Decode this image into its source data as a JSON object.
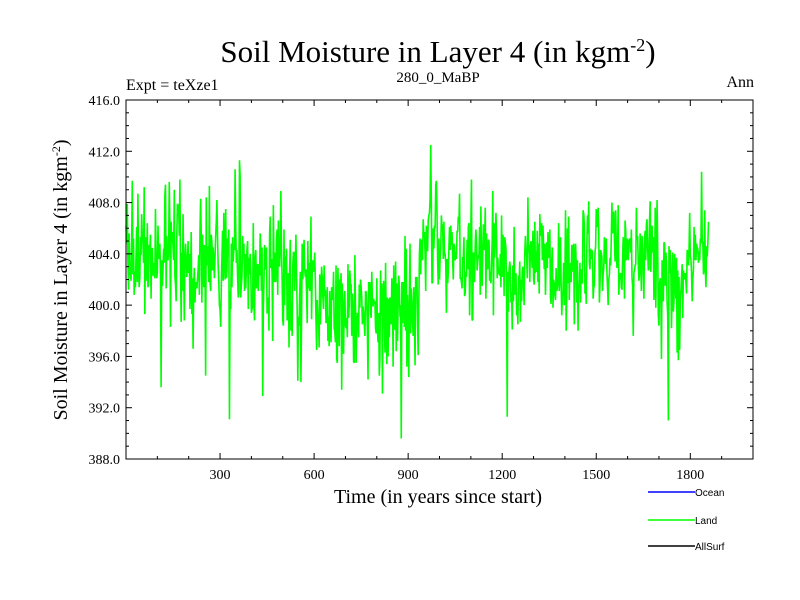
{
  "chart_data": {
    "type": "line",
    "title": "Soil Moisture in Layer 4 (in kgm",
    "title_superscript": "-2",
    "title_close": ")",
    "subtitle_left": "Expt = teXze1",
    "subtitle_center": "280_0_MaBP",
    "subtitle_right": "Ann",
    "xlabel": "Time (in years since start)",
    "ylabel": "Soil Moisture in Layer 4 (in kgm",
    "ylabel_superscript": "-2",
    "ylabel_close": ")",
    "xlim": [
      0,
      2000
    ],
    "ylim": [
      388.0,
      416.0
    ],
    "x_ticks": [
      300,
      600,
      900,
      1200,
      1500,
      1800
    ],
    "x_tick_labels": [
      "300",
      "600",
      "900",
      "1200",
      "1500",
      "1800"
    ],
    "y_ticks": [
      388.0,
      392.0,
      396.0,
      400.0,
      404.0,
      408.0,
      412.0,
      416.0
    ],
    "y_tick_labels": [
      "388.0",
      "392.0",
      "396.0",
      "400.0",
      "404.0",
      "408.0",
      "412.0",
      "416.0"
    ],
    "legend_position": "bottom-right, outside plot",
    "series": [
      {
        "name": "Ocean",
        "color": "#0000ff",
        "values": []
      },
      {
        "name": "Land",
        "color": "#00ff00",
        "x_start": 0,
        "x_step": 2,
        "values": [
          406.2,
          404.8,
          407.9,
          403.5,
          401.2,
          405.6,
          403.1,
          402.4,
          401.9,
          404.7,
          409.7,
          402.4,
          405.2,
          400.8,
          402.6,
          401.4,
          403.8,
          406.1,
          401.8,
          408.7,
          403.1,
          401.4,
          402.1,
          405.3,
          403.9,
          407.1,
          405.2,
          404.9,
          403.3,
          409.2,
          399.3,
          405.3,
          401.9,
          403.1,
          406.4,
          401.4,
          401.7,
          404.7,
          404.2,
          405.5,
          400.5,
          404.4,
          404.4,
          402.3,
          403.3,
          402.5,
          402.1,
          407.5,
          403.6,
          402.1,
          402.5,
          406.2,
          403.9,
          403.6,
          404.8,
          402.3,
          393.6,
          403.5,
          401.5,
          402.7,
          404.4,
          403.3,
          408.6,
          409.4,
          401.3,
          405.4,
          404.1,
          403.5,
          404.3,
          409.6,
          406.2,
          398.3,
          406.5,
          404.9,
          405.7,
          404.5,
          403.5,
          409.0,
          402.2,
          401.6,
          400.3,
          405.3,
          407.9,
          407.8,
          407.5,
          405.4,
          409.8,
          402.3,
          398.7,
          404.1,
          401.1,
          407.1,
          403.1,
          398.8,
          403.7,
          404.8,
          403.4,
          402.2,
          403.4,
          405.0,
          402.5,
          404.0,
          399.7,
          401.8,
          405.7,
          399.3,
          402.1,
          396.6,
          401.6,
          402.9,
          400.2,
          401.8,
          401.5,
          401.3,
          402.0,
          402.8,
          403.9,
          400.8,
          405.8,
          408.3,
          405.5,
          400.2,
          405.5,
          403.7,
          401.4,
          404.7,
          403.6,
          394.5,
          408.4,
          403.1,
          404.6,
          403.4,
          401.8,
          409.3,
          401.8,
          401.1,
          405.5,
          404.9,
          402.7,
          404.5,
          403.5,
          402.1,
          403.7,
          405.4,
          406.5,
          408.2,
          405.3,
          403.1,
          401.8,
          400.0,
          399.7,
          398.3,
          401.4,
          403.6,
          405.8,
          401.9,
          407.2,
          403.9,
          402.0,
          407.5,
          402.1,
          402.7,
          405.2,
          404.9,
          405.9,
          391.1,
          401.1,
          399.7,
          404.8,
          401.4,
          405.3,
          403.4,
          404.4,
          404.3,
          410.6,
          406.0,
          403.3,
          404.3,
          402.2,
          400.6,
          400.9,
          411.3,
          410.1,
          400.6,
          401.6,
          402.3,
          405.4,
          403.8,
          404.8,
          401.1,
          404.0,
          401.3,
          402.9,
          404.4,
          405.0,
          399.7,
          403.7,
          402.4,
          404.0,
          402.8,
          399.4,
          399.7,
          400.0,
          406.4,
          400.0,
          398.8,
          403.8,
          404.3,
          401.3,
          402.6,
          403.2,
          401.1,
          403.2,
          402.3,
          405.6,
          404.1,
          401.1,
          404.5,
          392.9,
          399.6,
          401.8,
          404.7,
          403.3,
          402.8,
          404.5,
          399.4,
          399.4,
          400.6,
          398.0,
          405.5,
          406.9,
          402.9,
          403.6,
          402.5,
          397.2,
          407.8,
          403.2,
          401.8,
          404.1,
          401.8,
          405.1,
          405.9,
          400.8,
          406.6,
          403.8,
          403.0,
          404.6,
          408.9,
          404.2,
          402.1,
          398.8,
          398.4,
          405.9,
          400.0,
          403.8,
          402.4,
          404.4,
          398.8,
          400.7,
          402.5,
          396.7,
          402.8,
          405.1,
          398.0,
          400.2,
          397.6,
          403.1,
          404.1,
          404.1,
          401.1,
          402.8,
          405.5,
          402.6,
          399.6,
          394.1,
          399.1,
          398.4,
          400.7,
          402.6,
          394.0,
          399.0,
          404.8,
          402.0,
          403.6,
          405.1,
          402.8,
          402.2,
          402.8,
          400.9,
          398.6,
          405.0,
          401.3,
          403.3,
          401.1,
          401.7,
          406.9,
          398.9,
          402.7,
          403.5,
          402.6,
          403.1,
          404.1,
          401.9,
          398.9,
          396.5,
          400.4,
          399.1,
          399.1,
          396.7,
          402.4,
          398.5,
          400.6,
          403.0,
          402.1,
          400.6,
          399.7,
          403.1,
          400.7,
          401.2,
          398.6,
          398.8,
          401.4,
          397.2,
          399.1,
          396.8,
          401.1,
          398.7,
          397.1,
          401.4,
          401.1,
          400.4,
          402.6,
          398.2,
          398.0,
          397.1,
          403.1,
          395.8,
          395.5,
          402.9,
          400.1,
          396.8,
          402.0,
          400.9,
          402.5,
          393.4,
          401.7,
          398.2,
          396.2,
          400.3,
          401.1,
          398.4,
          398.2,
          399.0,
          397.5,
          403.2,
          399.0,
          399.9,
          402.7,
          401.6,
          401.6,
          397.6,
          400.9,
          400.1,
          395.6,
          395.5,
          403.9,
          400.0,
          395.5,
          398.2,
          399.4,
          398.7,
          397.5,
          401.6,
          399.8,
          402.0,
          401.4,
          400.6,
          398.5,
          399.9,
          399.3,
          398.5,
          397.6,
          401.1,
          401.0,
          400.1,
          398.1,
          394.2,
          401.8,
          401.4,
          401.8,
          399.5,
          399.0,
          402.6,
          400.2,
          399.9,
          400.5,
          400.1,
          400.3,
          398.2,
          397.8,
          402.1,
          398.1,
          397.1,
          399.4,
          394.5,
          395.9,
          402.7,
          399.2,
          401.7,
          393.1,
          400.0,
          401.9,
          399.5,
          396.3,
          403.3,
          398.3,
          395.4,
          400.6,
          396.0,
          400.5,
          397.5,
          400.6,
          399.6,
          398.5,
          402.1,
          401.3,
          395.2,
          403.1,
          398.1,
          398.2,
          403.4,
          396.4,
          401.7,
          397.2,
          399.9,
          402.3,
          401.4,
          399.1,
          400.0,
          389.6,
          401.8,
          398.6,
          401.8,
          401.4,
          398.3,
          405.4,
          398.0,
          404.4,
          395.2,
          400.8,
          398.1,
          394.4,
          401.1,
          404.8,
          397.8,
          401.3,
          400.3,
          398.6,
          397.6,
          401.4,
          399.4,
          395.3,
          402.2,
          401.1,
          402.2,
          398.7,
          396.1,
          400.0,
          404.0,
          405.2,
          402.4,
          405.1,
          404.0,
          403.5,
          406.7,
          405.3,
          405.7,
          404.0,
          401.1,
          406.2,
          404.5,
          404.2,
          406.6,
          407.0,
          407.2,
          408.3,
          412.5,
          407.9,
          401.7,
          401.8,
          406.0,
          404.4,
          406.2,
          406.0,
          409.4,
          409.7,
          407.5,
          403.6,
          401.6,
          405.2,
          402.0,
          403.7,
          404.4,
          407.0,
          406.1,
          406.3,
          403.6,
          406.5,
          403.8,
          403.9,
          403.3,
          399.4,
          403.6,
          401.7,
          402.5,
          404.5,
          406.1,
          404.3,
          406.2,
          404.7,
          405.7,
          403.4,
          402.0,
          404.8,
          404.5,
          403.5,
          404.1,
          403.6,
          405.8,
          405.7,
          406.9,
          406.4,
          408.7,
          402.1,
          402.1,
          401.8,
          401.3,
          403.7,
          403.7,
          405.3,
          400.7,
          400.9,
          402.6,
          402.2,
          405.1,
          402.8,
          406.1,
          406.4,
          399.2,
          402.5,
          406.0,
          409.8,
          398.8,
          398.9,
          404.1,
          404.0,
          401.8,
          404.8,
          405.9,
          405.0,
          402.7,
          403.4,
          403.8,
          403.9,
          406.1,
          400.8,
          407.7,
          403.3,
          401.5,
          404.1,
          406.3,
          404.3,
          405.2,
          407.6,
          400.5,
          405.6,
          402.9,
          402.8,
          405.1,
          405.0,
          401.9,
          402.6,
          401.7,
          403.2,
          404.9,
          408.9,
          399.2,
          406.4,
          403.7,
          404.9,
          407.2,
          405.6,
          402.1,
          403.7,
          402.5,
          402.5,
          402.3,
          404.0,
          401.4,
          407.0,
          402.2,
          405.5,
          405.1,
          400.7,
          405.3,
          404.9,
          404.4,
          400.4,
          391.3,
          402.6,
          399.5,
          402.8,
          403.4,
          402.9,
          400.2,
          401.0,
          398.1,
          403.1,
          400.3,
          406.1,
          400.8,
          402.0,
          402.5,
          399.2,
          400.2,
          398.5,
          402.3,
          401.6,
          403.4,
          398.7,
          402.0,
          400.3,
          402.6,
          403.0,
          401.7,
          400.0,
          404.0,
          405.4,
          404.1,
          403.8,
          402.1,
          408.4,
          404.1,
          404.7,
          401.8,
          404.6,
          405.0,
          403.6,
          402.9,
          405.8,
          402.1,
          401.6,
          406.5,
          402.5,
          404.2,
          402.6,
          405.8,
          401.8,
          404.8,
          400.9,
          407.1,
          405.6,
          405.4,
          406.4,
          403.5,
          406.2,
          404.6,
          402.8,
          404.8,
          400.8,
          403.3,
          404.9,
          402.9,
          405.7,
          403.7,
          403.8,
          405.9,
          400.6,
          400.1,
          403.5,
          404.5,
          399.8,
          402.0,
          401.7,
          400.8,
          400.4,
          402.9,
          401.1,
          401.4,
          401.9,
          406.4,
          401.1,
          402.4,
          405.3,
          401.7,
          399.2,
          400.7,
          401.1,
          403.3,
          400.0,
          402.0,
          407.4,
          398.0,
          400.8,
          406.0,
          401.7,
          406.9,
          400.4,
          403.3,
          403.0,
          401.8,
          404.7,
          404.3,
          402.6,
          404.8,
          398.5,
          403.7,
          404.8,
          403.1,
          400.2,
          403.5,
          398.0,
          401.6,
          401.5,
          403.3,
          400.2,
          402.8,
          401.8,
          401.7,
          407.4,
          407.1,
          406.3,
          400.9,
          402.5,
          400.1,
          404.5,
          407.0,
          405.6,
          408.1,
          403.3,
          402.8,
          404.4,
          403.6,
          404.3,
          404.1,
          400.5,
          401.4,
          401.5,
          404.1,
          404.6,
          407.5,
          406.1,
          406.3,
          407.6,
          405.8,
          400.2,
          401.7,
          404.3,
          404.1,
          403.7,
          401.1,
          402.4,
          402.9,
          405.3,
          404.6,
          403.2,
          405.2,
          402.6,
          401.4,
          400.0,
          402.0,
          402.4,
          403.7,
          403.1,
          405.3,
          408.0,
          405.6,
          405.8,
          407.3,
          405.1,
          403.4,
          407.4,
          404.5,
          402.9,
          404.1,
          407.8,
          400.8,
          402.4,
          402.4,
          402.5,
          401.4,
          401.2,
          403.6,
          405.3,
          404.7,
          400.5,
          406.6,
          405.8,
          403.5,
          404.4,
          405.2,
          403.5,
          404.8,
          405.1,
          405.2,
          404.1,
          405.9,
          402.2,
          401.5,
          397.6,
          402.5,
          402.7,
          403.1,
          403.2,
          407.6,
          405.1,
          405.4,
          403.3,
          401.9,
          402.5,
          405.6,
          403.2,
          401.1,
          405.4,
          404.3,
          402.8,
          400.5,
          405.2,
          405.8,
          403.5,
          406.3,
          406.7,
          404.4,
          402.7,
          402.9,
          406.6,
          408.1,
          402.6,
          405.0,
          406.2,
          404.1,
          405.3,
          400.4,
          401.5,
          407.6,
          399.8,
          404.8,
          408.2,
          404.3,
          399.2,
          398.4,
          401.7,
          402.1,
          401.4,
          395.8,
          403.5,
          403.3,
          400.3,
          404.9,
          404.8,
          401.5,
          404.1,
          403.4,
          400.2,
          399.2,
          391.0,
          404.6,
          402.5,
          404.3,
          402.5,
          398.2,
          401.5,
          404.1,
          399.5,
          400.4,
          404.0,
          402.1,
          400.5,
          403.7,
          396.3,
          402.7,
          395.7,
          402.2,
          396.5,
          400.3,
          401.1,
          402.1,
          403.2,
          399.0,
          402.7,
          402.3,
          402.0,
          402.5,
          401.8,
          400.9,
          404.3,
          404.2,
          403.1,
          404.3,
          407.2,
          403.8,
          403.6,
          402.5,
          400.3,
          402.0,
          402.8,
          406.1,
          403.5,
          405.5,
          403.5,
          404.8,
          404.5,
          404.4,
          403.3,
          404.2,
          403.5,
          405.2,
          404.8,
          410.4,
          405.0,
          404.9,
          402.4,
          402.9,
          407.4,
          402.7,
          401.4,
          404.6,
          403.8,
          404.8,
          406.5
        ]
      },
      {
        "name": "AllSurf",
        "color": "#000000",
        "values": []
      }
    ]
  }
}
